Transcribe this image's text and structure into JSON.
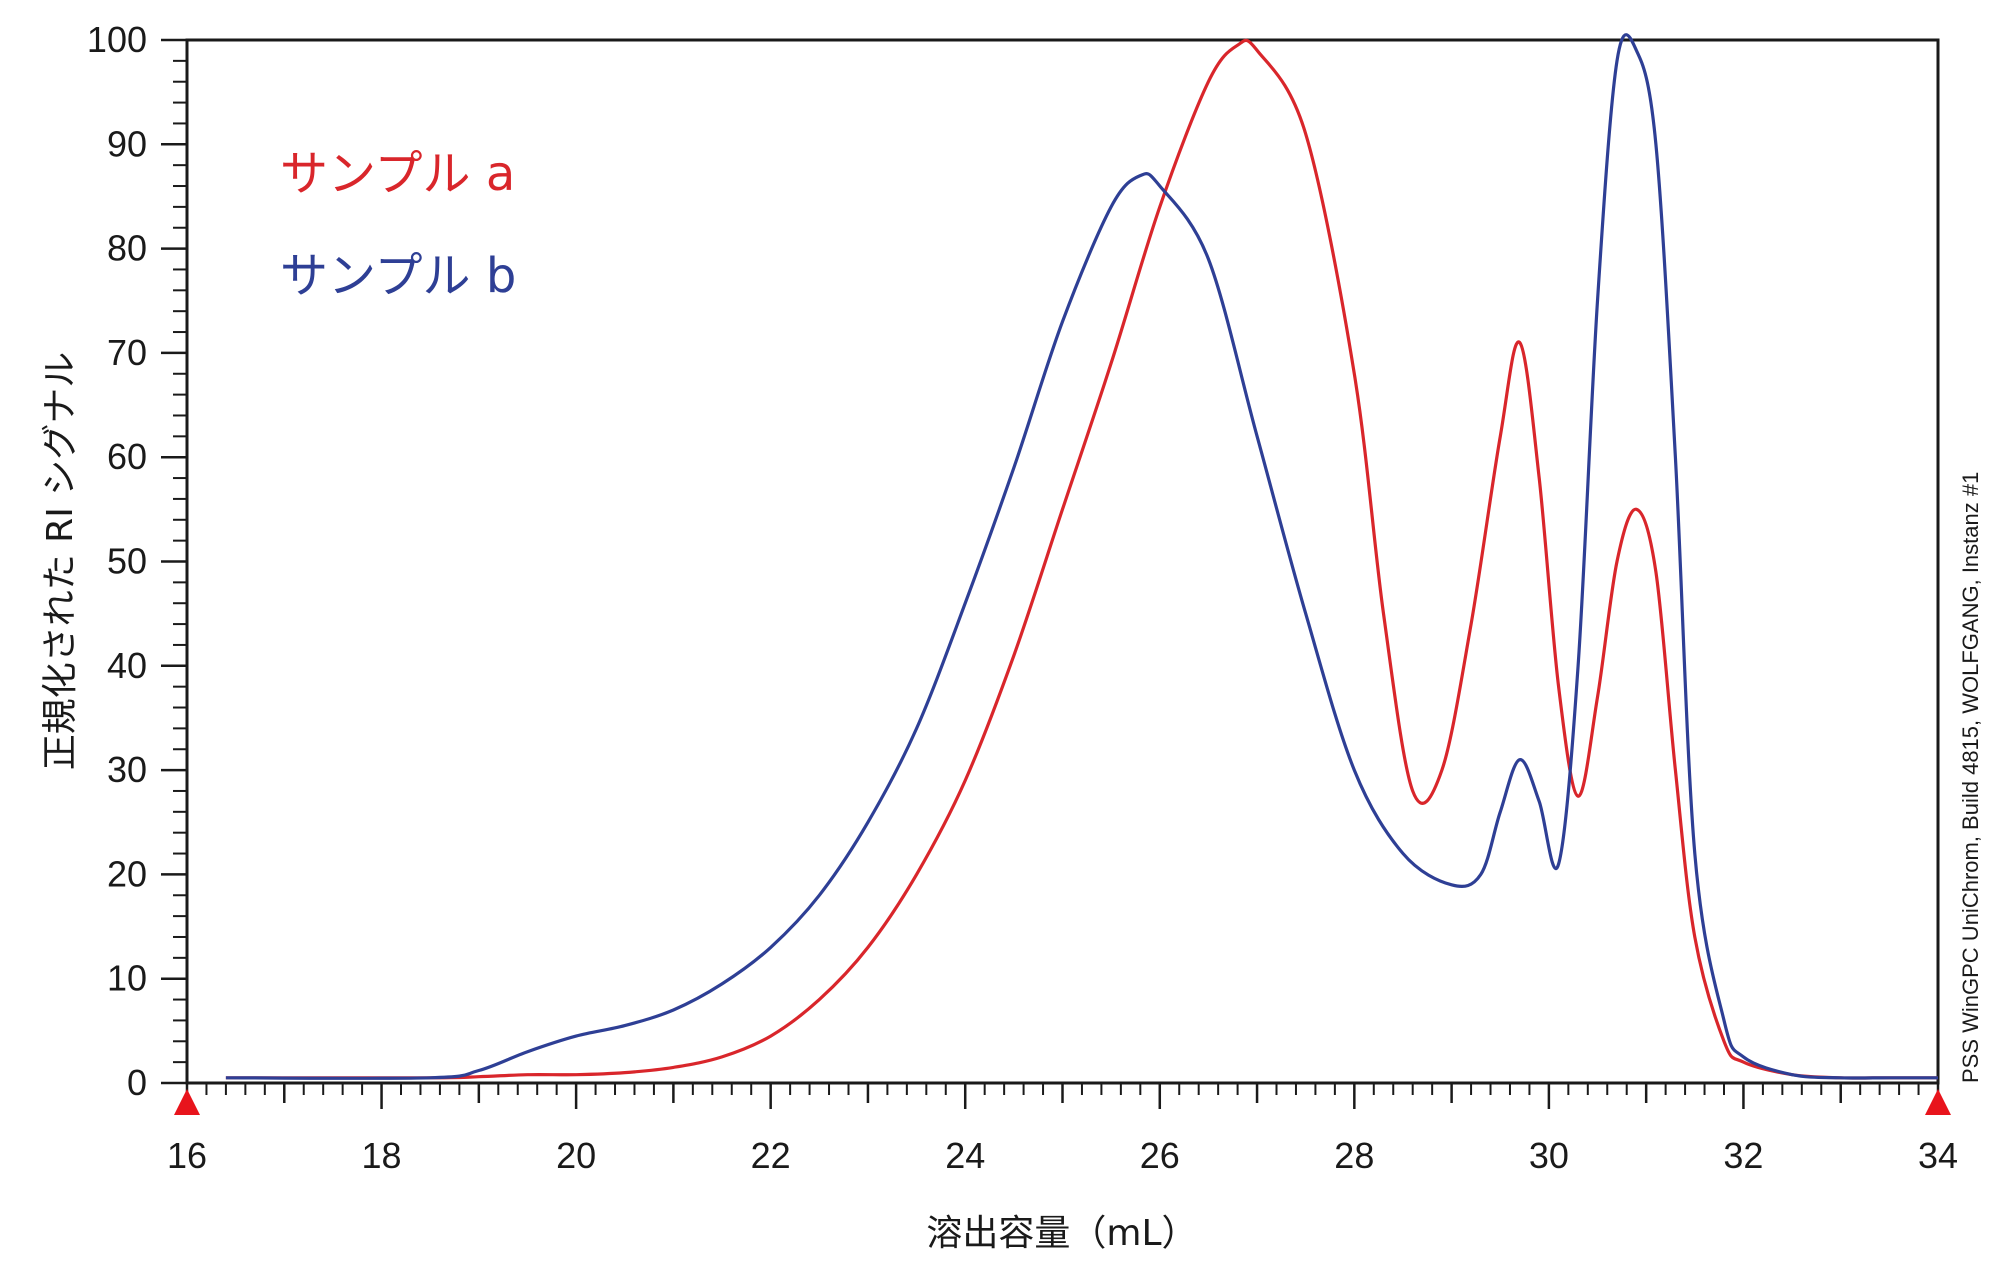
{
  "chart_data": {
    "type": "line",
    "xlabel": "溶出容量（mL）",
    "ylabel": "正規化された RI シグナル",
    "xlim": [
      16,
      34
    ],
    "ylim": [
      0,
      100
    ],
    "x_ticks": [
      16,
      18,
      20,
      22,
      24,
      26,
      28,
      30,
      32,
      34
    ],
    "y_ticks": [
      0,
      10,
      20,
      30,
      40,
      50,
      60,
      70,
      80,
      90,
      100
    ],
    "grid": false,
    "legend_position": "top-left",
    "watermark": "PSS WinGPC UniChrom, Build 4815, WOLFGANG, Instanz #1",
    "series": [
      {
        "name": "サンプル a",
        "color": "#d9262b",
        "x": [
          16.4,
          18.5,
          19,
          19.5,
          20,
          20.5,
          21,
          21.5,
          22,
          22.5,
          23,
          23.5,
          24,
          24.5,
          25,
          25.5,
          26,
          26.5,
          26.8,
          27,
          27.5,
          28,
          28.3,
          28.6,
          28.9,
          29.2,
          29.5,
          29.7,
          29.9,
          30.1,
          30.3,
          30.5,
          30.7,
          30.9,
          31.1,
          31.3,
          31.5,
          31.8,
          32,
          32.5,
          33,
          33.5,
          34
        ],
        "y": [
          0.5,
          0.5,
          0.6,
          0.8,
          0.8,
          1.0,
          1.5,
          2.5,
          4.5,
          8,
          13,
          20,
          29,
          41,
          55,
          69,
          84,
          96,
          99.5,
          99,
          91,
          68,
          45,
          28,
          30,
          44,
          62,
          71,
          58,
          38,
          27.5,
          37,
          50,
          55,
          49,
          30,
          14,
          4,
          2,
          0.8,
          0.5,
          0.5,
          0.5
        ]
      },
      {
        "name": "サンプル b",
        "color": "#2e3f95",
        "x": [
          16.4,
          18.5,
          19,
          19.5,
          20,
          20.5,
          21,
          21.5,
          22,
          22.5,
          23,
          23.5,
          24,
          24.5,
          25,
          25.5,
          25.8,
          26,
          26.5,
          27,
          27.5,
          28,
          28.5,
          29,
          29.3,
          29.5,
          29.7,
          29.9,
          30.1,
          30.3,
          30.5,
          30.7,
          30.9,
          31.1,
          31.3,
          31.5,
          31.8,
          32,
          32.5,
          33,
          33.5,
          34
        ],
        "y": [
          0.5,
          0.5,
          1.2,
          3,
          4.5,
          5.5,
          7,
          9.5,
          13,
          18,
          25,
          34,
          46,
          59,
          73,
          84,
          87,
          86,
          79,
          62,
          45,
          30,
          22,
          19,
          20,
          26,
          31,
          27,
          21,
          40,
          75,
          98,
          99,
          90,
          60,
          22,
          6,
          2.5,
          0.8,
          0.5,
          0.5,
          0.5
        ]
      }
    ]
  }
}
